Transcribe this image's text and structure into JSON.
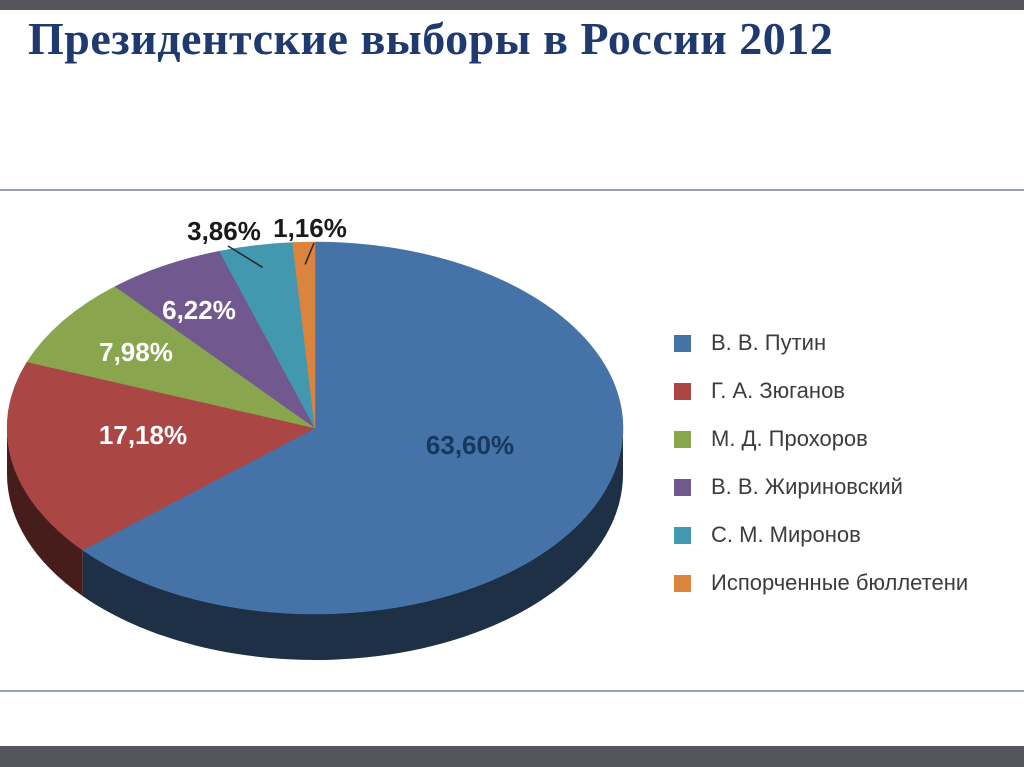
{
  "slide": {
    "title": "Президентские выборы в России 2012"
  },
  "colors": {
    "bar": "#54565B",
    "divider": "#97A2AE",
    "title": "#1E3A6E",
    "background": "#FFFFFF",
    "legend_text": "#3C3C3C",
    "leader_line": "#2B2B2B"
  },
  "chart_data": {
    "type": "pie",
    "style": "3d",
    "title": "Президентские выборы в России 2012",
    "unit": "%",
    "start_angle_deg": -90,
    "direction": "clockwise",
    "legend_position": "right",
    "series": [
      {
        "name": "В. В. Путин",
        "value": 63.6,
        "label": "63,60%",
        "color": "#4572A7",
        "label_color": "#17375E",
        "label_inside": true,
        "label_xy": [
          470,
          254
        ]
      },
      {
        "name": "Г. А. Зюганов",
        "value": 17.18,
        "label": "17,18%",
        "color": "#AA4643",
        "label_color": "#FFFFFF",
        "label_inside": true,
        "label_xy": [
          143,
          244
        ]
      },
      {
        "name": "М. Д. Прохоров",
        "value": 7.98,
        "label": "7,98%",
        "color": "#89A54E",
        "label_color": "#FFFFFF",
        "label_inside": true,
        "label_xy": [
          136,
          161
        ]
      },
      {
        "name": "В. В. Жириновский",
        "value": 6.22,
        "label": "6,22%",
        "color": "#71588F",
        "label_color": "#FFFFFF",
        "label_inside": true,
        "label_xy": [
          199,
          119
        ]
      },
      {
        "name": "С. М. Миронов",
        "value": 3.86,
        "label": "3,86%",
        "color": "#4198AF",
        "label_color": "#1A1A1A",
        "label_inside": false,
        "label_xy": [
          224,
          40
        ]
      },
      {
        "name": "Испорченные бюллетени",
        "value": 1.16,
        "label": "1,16%",
        "color": "#DB843D",
        "label_color": "#1A1A1A",
        "label_inside": false,
        "label_xy": [
          310,
          37
        ]
      }
    ]
  }
}
